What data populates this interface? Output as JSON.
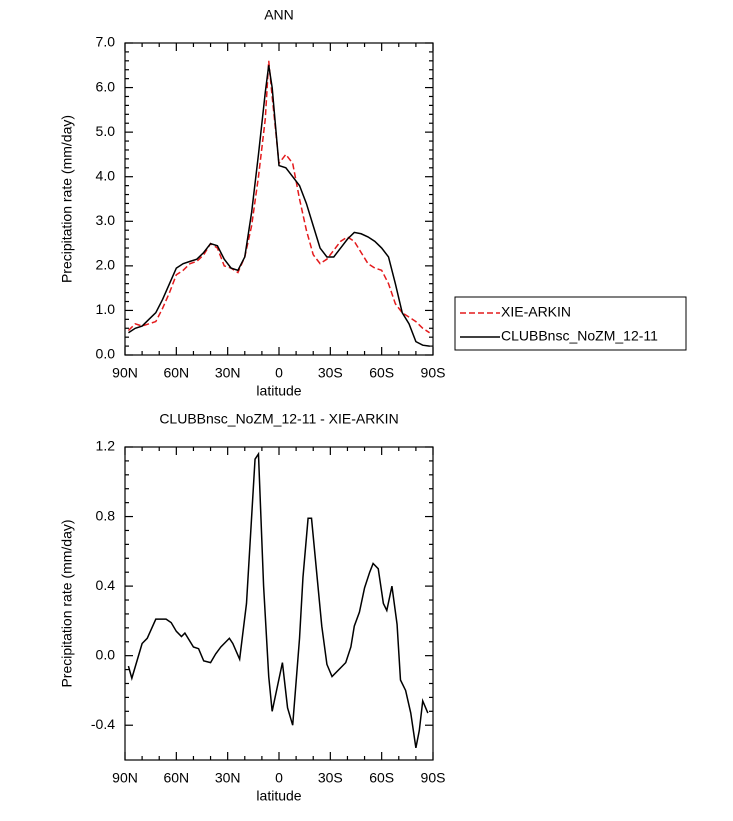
{
  "chart_data": [
    {
      "type": "line",
      "title": "ANN",
      "xlabel": "latitude",
      "ylabel": "Precipitation rate (mm/day)",
      "x": [
        88,
        84,
        80,
        76,
        72,
        68,
        64,
        60,
        56,
        52,
        48,
        44,
        40,
        36,
        32,
        28,
        24,
        20,
        16,
        12,
        8,
        6,
        4,
        0,
        -4,
        -8,
        -12,
        -16,
        -20,
        -24,
        -28,
        -32,
        -36,
        -40,
        -44,
        -48,
        -52,
        -56,
        -60,
        -64,
        -68,
        -72,
        -76,
        -80,
        -84,
        -88
      ],
      "series": [
        {
          "name": "XIE-ARKIN",
          "color": "#e41a1c",
          "linestyle": "dashed",
          "values": [
            0.55,
            0.7,
            0.65,
            0.7,
            0.75,
            1.05,
            1.4,
            1.8,
            1.9,
            2.05,
            2.1,
            2.25,
            2.5,
            2.4,
            2.0,
            1.95,
            1.85,
            2.2,
            2.9,
            4.0,
            5.3,
            6.6,
            5.8,
            4.3,
            4.5,
            4.3,
            3.5,
            2.8,
            2.25,
            2.05,
            2.15,
            2.35,
            2.55,
            2.65,
            2.55,
            2.3,
            2.05,
            1.95,
            1.9,
            1.6,
            1.15,
            0.95,
            0.85,
            0.75,
            0.6,
            0.5
          ]
        },
        {
          "name": "CLUBBnsc_NoZM_12-11",
          "color": "#000000",
          "linestyle": "solid",
          "values": [
            0.5,
            0.6,
            0.65,
            0.8,
            0.95,
            1.25,
            1.6,
            1.95,
            2.05,
            2.1,
            2.15,
            2.3,
            2.5,
            2.45,
            2.15,
            1.95,
            1.9,
            2.2,
            3.2,
            4.5,
            5.9,
            6.5,
            6.0,
            4.25,
            4.2,
            4.0,
            3.8,
            3.4,
            2.9,
            2.4,
            2.2,
            2.2,
            2.4,
            2.6,
            2.75,
            2.72,
            2.65,
            2.55,
            2.4,
            2.2,
            1.6,
            0.95,
            0.7,
            0.3,
            0.22,
            0.2
          ]
        }
      ],
      "xlim": [
        90,
        -90
      ],
      "xticks": [
        {
          "value": 90,
          "label": "90N"
        },
        {
          "value": 60,
          "label": "60N"
        },
        {
          "value": 30,
          "label": "30N"
        },
        0,
        {
          "value": -30,
          "label": "30S"
        },
        {
          "value": -60,
          "label": "60S"
        },
        {
          "value": -90,
          "label": "90S"
        }
      ],
      "ylim": [
        0,
        7
      ],
      "yticks": [
        {
          "value": 0,
          "label": "0.0"
        },
        {
          "value": 1,
          "label": "1.0"
        },
        {
          "value": 2,
          "label": "2.0"
        },
        {
          "value": 3,
          "label": "3.0"
        },
        {
          "value": 4,
          "label": "4.0"
        },
        {
          "value": 5,
          "label": "5.0"
        },
        {
          "value": 6,
          "label": "6.0"
        },
        {
          "value": 7,
          "label": "7.0"
        }
      ],
      "legend": "right"
    },
    {
      "type": "line",
      "title": "CLUBBnsc_NoZM_12-11 - XIE-ARKIN",
      "xlabel": "latitude",
      "ylabel": "Precipitation rate (mm/day)",
      "x": [
        88,
        86,
        80,
        77,
        72,
        66,
        63,
        60,
        57,
        55,
        50,
        47,
        44,
        40,
        37,
        34,
        29,
        27,
        23,
        19,
        14,
        12,
        9,
        6,
        4,
        -2,
        -5,
        -8,
        -12,
        -14,
        -17,
        -19,
        -25,
        -28,
        -31,
        -37,
        -39,
        -42,
        -44,
        -47,
        -50,
        -53,
        -55,
        -58,
        -61,
        -63,
        -66,
        -69,
        -71,
        -74,
        -77,
        -80,
        -82,
        -84,
        -87
      ],
      "values": [
        -0.06,
        -0.13,
        0.07,
        0.1,
        0.21,
        0.21,
        0.19,
        0.14,
        0.11,
        0.13,
        0.05,
        0.04,
        -0.03,
        -0.04,
        0.01,
        0.05,
        0.1,
        0.07,
        -0.02,
        0.3,
        1.13,
        1.16,
        0.4,
        -0.12,
        -0.32,
        -0.04,
        -0.3,
        -0.4,
        0.1,
        0.45,
        0.79,
        0.79,
        0.17,
        -0.05,
        -0.12,
        -0.06,
        -0.04,
        0.05,
        0.17,
        0.25,
        0.39,
        0.48,
        0.53,
        0.5,
        0.3,
        0.26,
        0.4,
        0.18,
        -0.14,
        -0.2,
        -0.33,
        -0.53,
        -0.43,
        -0.26,
        -0.33
      ],
      "color": "#000000",
      "linestyle": "solid",
      "xlim": [
        90,
        -90
      ],
      "xticks": [
        {
          "value": 90,
          "label": "90N"
        },
        {
          "value": 60,
          "label": "60N"
        },
        {
          "value": 30,
          "label": "30N"
        },
        0,
        {
          "value": -30,
          "label": "30S"
        },
        {
          "value": -60,
          "label": "60S"
        },
        {
          "value": -90,
          "label": "90S"
        }
      ],
      "ylim": [
        -0.6,
        1.2
      ],
      "yticks": [
        -0.4,
        {
          "value": 0,
          "label": "0.0"
        },
        0.4,
        0.8,
        1.2
      ]
    }
  ]
}
